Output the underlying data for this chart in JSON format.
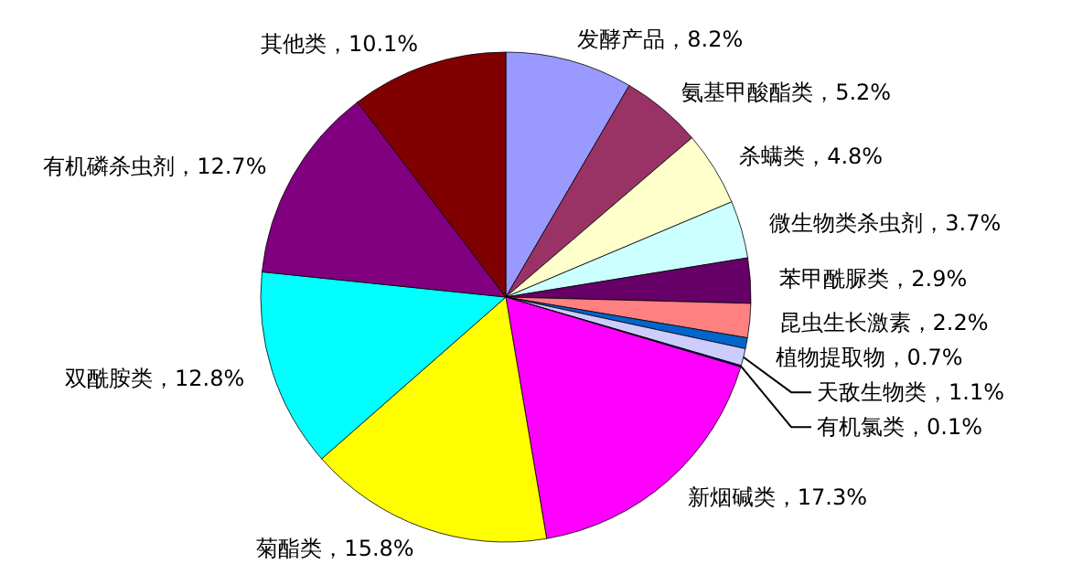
{
  "chart_data": {
    "type": "pie",
    "categories": [
      "发酵产品",
      "氨基甲酸酯类",
      "杀螨类",
      "微生物类杀虫剂",
      "苯甲酰脲类",
      "昆虫生长激素",
      "植物提取物",
      "天敌生物类",
      "有机氯类",
      "新烟碱类",
      "菊酯类",
      "双酰胺类",
      "有机磷杀虫剂",
      "其他类"
    ],
    "values": [
      8.2,
      5.2,
      4.8,
      3.7,
      2.9,
      2.2,
      0.7,
      1.1,
      0.1,
      17.3,
      15.8,
      12.8,
      12.7,
      10.1
    ],
    "colors": [
      "#9999ff",
      "#993366",
      "#ffffcc",
      "#ccffff",
      "#660066",
      "#ff8080",
      "#0066cc",
      "#ccccff",
      "#000080",
      "#ff00ff",
      "#ffff00",
      "#00ffff",
      "#800080",
      "#800000"
    ],
    "value_labels": [
      "8.2%",
      "5.2%",
      "4.8%",
      "3.7%",
      "2.9%",
      "2.2%",
      "0.7%",
      "1.1%",
      "0.1%",
      "17.3%",
      "15.8%",
      "12.8%",
      "12.7%",
      "10.1%"
    ]
  }
}
